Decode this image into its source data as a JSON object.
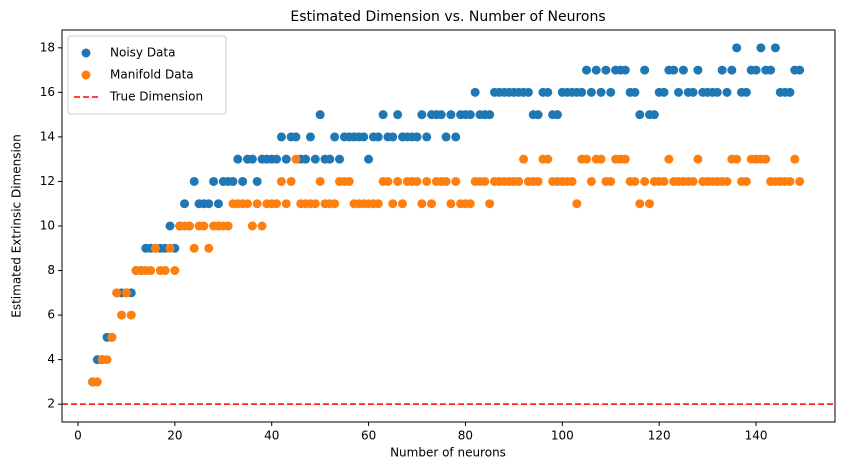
{
  "chart_data": {
    "type": "scatter",
    "title": "Estimated Dimension vs. Number of Neurons",
    "x_label": "Number of neurons",
    "y_label": "Estimated Extrinsic Dimension",
    "x": [
      3,
      4,
      5,
      6,
      7,
      8,
      9,
      10,
      11,
      12,
      13,
      14,
      15,
      16,
      17,
      18,
      19,
      20,
      21,
      22,
      23,
      24,
      25,
      26,
      27,
      28,
      29,
      30,
      31,
      32,
      33,
      34,
      35,
      36,
      37,
      38,
      39,
      40,
      41,
      42,
      43,
      44,
      45,
      46,
      47,
      48,
      49,
      50,
      51,
      52,
      53,
      54,
      55,
      56,
      57,
      58,
      59,
      60,
      61,
      62,
      63,
      64,
      65,
      66,
      67,
      68,
      69,
      70,
      71,
      72,
      73,
      74,
      75,
      76,
      77,
      78,
      79,
      80,
      81,
      82,
      83,
      84,
      85,
      86,
      87,
      88,
      89,
      90,
      91,
      92,
      93,
      94,
      95,
      96,
      97,
      98,
      99,
      100,
      101,
      102,
      103,
      104,
      105,
      106,
      107,
      108,
      109,
      110,
      111,
      112,
      113,
      114,
      115,
      116,
      117,
      118,
      119,
      120,
      121,
      122,
      123,
      124,
      125,
      126,
      127,
      128,
      129,
      130,
      131,
      132,
      133,
      134,
      135,
      136,
      137,
      138,
      139,
      140,
      141,
      142,
      143,
      144,
      145,
      146,
      147,
      148,
      149
    ],
    "series": [
      {
        "name": "Noisy Data",
        "color": "#1f77b4",
        "values": [
          3,
          4,
          4,
          5,
          5,
          7,
          7,
          7,
          7,
          8,
          8,
          9,
          9,
          9,
          9,
          9,
          10,
          9,
          10,
          11,
          10,
          12,
          11,
          11,
          11,
          12,
          11,
          12,
          12,
          12,
          13,
          12,
          13,
          13,
          12,
          13,
          13,
          13,
          13,
          14,
          13,
          14,
          14,
          13,
          13,
          14,
          13,
          15,
          13,
          13,
          14,
          13,
          14,
          14,
          14,
          14,
          14,
          13,
          14,
          14,
          15,
          14,
          14,
          15,
          14,
          14,
          14,
          14,
          15,
          14,
          15,
          15,
          15,
          14,
          15,
          14,
          15,
          15,
          15,
          16,
          15,
          15,
          15,
          16,
          16,
          16,
          16,
          16,
          16,
          16,
          16,
          15,
          15,
          16,
          16,
          15,
          15,
          16,
          16,
          16,
          16,
          16,
          17,
          16,
          17,
          16,
          17,
          16,
          17,
          17,
          17,
          16,
          16,
          15,
          17,
          15,
          15,
          16,
          16,
          17,
          17,
          16,
          17,
          16,
          16,
          17,
          16,
          16,
          16,
          16,
          17,
          16,
          17,
          18,
          16,
          16,
          17,
          17,
          18,
          17,
          17,
          18,
          16,
          16,
          16,
          17,
          17
        ]
      },
      {
        "name": "Manifold Data",
        "color": "#ff7f0e",
        "values": [
          3,
          3,
          4,
          4,
          5,
          7,
          6,
          7,
          6,
          8,
          8,
          8,
          8,
          9,
          8,
          8,
          9,
          8,
          10,
          10,
          10,
          9,
          10,
          10,
          9,
          10,
          10,
          10,
          10,
          11,
          11,
          11,
          11,
          10,
          11,
          10,
          11,
          11,
          11,
          12,
          11,
          12,
          13,
          11,
          11,
          11,
          11,
          12,
          11,
          11,
          11,
          12,
          12,
          12,
          11,
          11,
          11,
          11,
          11,
          11,
          12,
          12,
          11,
          12,
          11,
          12,
          12,
          12,
          11,
          12,
          11,
          12,
          12,
          12,
          11,
          12,
          11,
          11,
          11,
          12,
          12,
          12,
          11,
          12,
          12,
          12,
          12,
          12,
          12,
          13,
          12,
          12,
          12,
          13,
          13,
          12,
          12,
          12,
          12,
          12,
          11,
          13,
          13,
          12,
          13,
          13,
          12,
          12,
          13,
          13,
          13,
          12,
          12,
          11,
          12,
          11,
          12,
          12,
          12,
          13,
          12,
          12,
          12,
          12,
          12,
          13,
          12,
          12,
          12,
          12,
          12,
          12,
          13,
          13,
          12,
          12,
          13,
          13,
          13,
          13,
          12,
          12,
          12,
          12,
          12,
          13,
          12
        ]
      }
    ],
    "hlines": [
      {
        "name": "True Dimension",
        "value": 2,
        "color": "#ff0000",
        "dashed": true
      }
    ],
    "xlim": [
      -3.3,
      156.3
    ],
    "ylim": [
      1.2,
      18.8
    ],
    "xticks": [
      0,
      20,
      40,
      60,
      80,
      100,
      120,
      140
    ],
    "yticks": [
      2,
      4,
      6,
      8,
      10,
      12,
      14,
      16,
      18
    ],
    "legend": "upper left",
    "grid": false
  }
}
